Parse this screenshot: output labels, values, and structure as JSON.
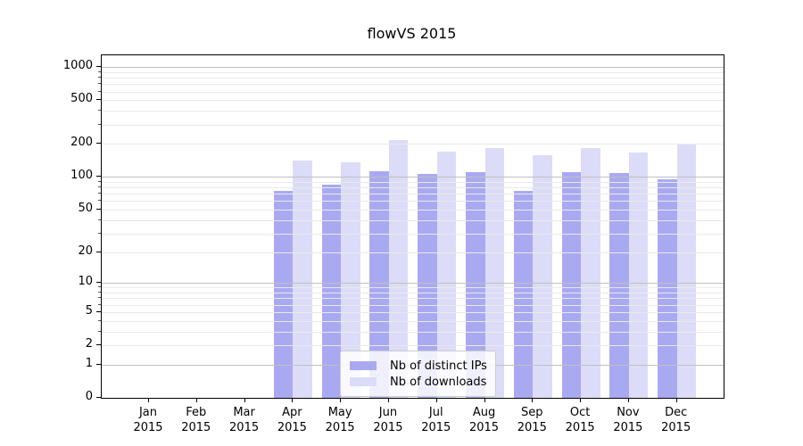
{
  "title": "flowVS 2015",
  "chart_data": {
    "type": "bar",
    "title": "flowVS 2015",
    "categories": [
      "Jan 2015",
      "Feb 2015",
      "Mar 2015",
      "Apr 2015",
      "May 2015",
      "Jun 2015",
      "Jul 2015",
      "Aug 2015",
      "Sep 2015",
      "Oct 2015",
      "Nov 2015",
      "Dec 2015"
    ],
    "series": [
      {
        "name": "Nb of distinct IPs",
        "color": "#a9a9f2",
        "values": [
          0,
          0,
          0,
          75,
          85,
          113,
          107,
          111,
          75,
          110,
          108,
          95
        ]
      },
      {
        "name": "Nb of downloads",
        "color": "#dcdcf8",
        "values": [
          0,
          0,
          0,
          140,
          135,
          215,
          170,
          183,
          157,
          183,
          166,
          200
        ]
      }
    ],
    "xlabel": "",
    "ylabel": "",
    "y_scale": "log1p",
    "ylim": [
      0,
      1277
    ],
    "y_tick_values": [
      0,
      1,
      2,
      5,
      10,
      20,
      50,
      100,
      200,
      500,
      1000
    ],
    "y_tick_labels": [
      "0",
      "1",
      "2",
      "5",
      "10",
      "20",
      "50",
      "100",
      "200",
      "500",
      "1000"
    ],
    "y_major_gridlines": [
      1,
      10,
      100,
      1000
    ],
    "y_minor_gridlines": [
      2,
      3,
      4,
      5,
      6,
      7,
      8,
      9,
      20,
      30,
      40,
      50,
      60,
      70,
      80,
      90,
      200,
      300,
      400,
      500,
      600,
      700,
      800,
      900
    ],
    "grid": true,
    "legend_position": "lower center"
  },
  "legend": {
    "items": [
      {
        "label": "Nb of distinct IPs",
        "color": "#a9a9f2"
      },
      {
        "label": "Nb of downloads",
        "color": "#dcdcf8"
      }
    ]
  },
  "colors": {
    "series_dark": "#a9a9f2",
    "series_light": "#dcdcf8",
    "grid_major": "#bfbfbf",
    "grid_minor": "#e9e9e9",
    "spine": "#000000",
    "background": "#ffffff"
  }
}
